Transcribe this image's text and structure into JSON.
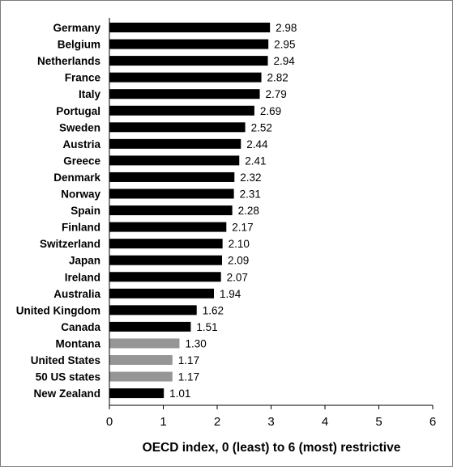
{
  "chart_data": {
    "type": "bar",
    "orientation": "horizontal",
    "title": "",
    "xlabel": "OECD index, 0 (least) to 6 (most) restrictive",
    "ylabel": "",
    "xlim": [
      0,
      6
    ],
    "xticks": [
      0,
      1,
      2,
      3,
      4,
      5,
      6
    ],
    "grid": false,
    "legend": "none",
    "colors": {
      "default": "#000000",
      "highlight": "#969696"
    },
    "categories": [
      "Germany",
      "Belgium",
      "Netherlands",
      "France",
      "Italy",
      "Portugal",
      "Sweden",
      "Austria",
      "Greece",
      "Denmark",
      "Norway",
      "Spain",
      "Finland",
      "Switzerland",
      "Japan",
      "Ireland",
      "Australia",
      "United Kingdom",
      "Canada",
      "Montana",
      "United States",
      "50 US states",
      "New Zealand"
    ],
    "values": [
      2.98,
      2.95,
      2.94,
      2.82,
      2.79,
      2.69,
      2.52,
      2.44,
      2.41,
      2.32,
      2.31,
      2.28,
      2.17,
      2.1,
      2.09,
      2.07,
      1.94,
      1.62,
      1.51,
      1.3,
      1.17,
      1.17,
      1.01
    ],
    "value_labels": [
      "2.98",
      "2.95",
      "2.94",
      "2.82",
      "2.79",
      "2.69",
      "2.52",
      "2.44",
      "2.41",
      "2.32",
      "2.31",
      "2.28",
      "2.17",
      "2.10",
      "2.09",
      "2.07",
      "1.94",
      "1.62",
      "1.51",
      "1.30",
      "1.17",
      "1.17",
      "1.01"
    ],
    "highlighted": [
      "Montana",
      "United States",
      "50 US states"
    ]
  }
}
